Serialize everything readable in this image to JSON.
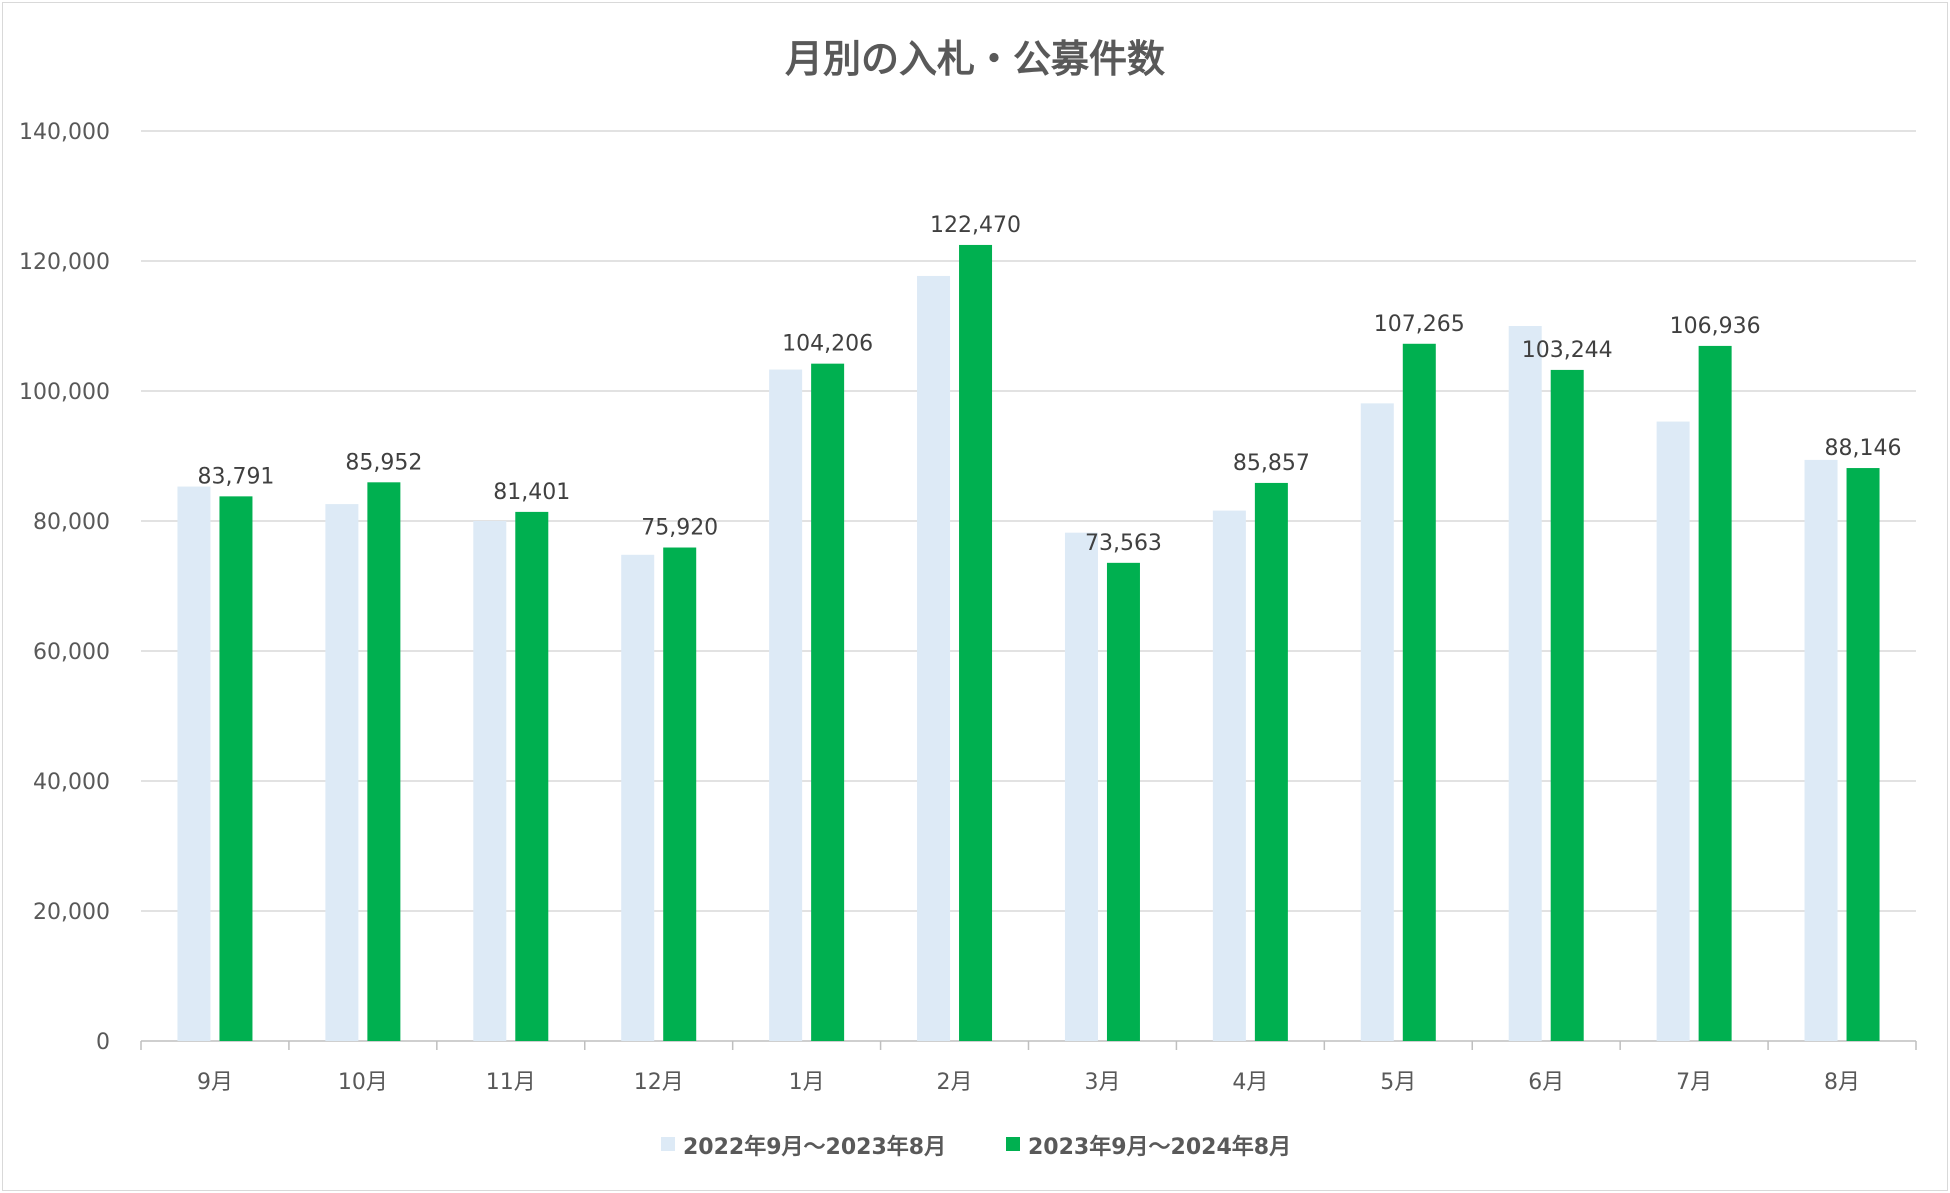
{
  "chart_data": {
    "type": "bar",
    "title": "月別の入札・公募件数",
    "xlabel": "",
    "ylabel": "",
    "ylim": [
      0,
      140000
    ],
    "yticks": [
      0,
      20000,
      40000,
      60000,
      80000,
      100000,
      120000,
      140000
    ],
    "ytick_labels": [
      "0",
      "20,000",
      "40,000",
      "60,000",
      "80,000",
      "100,000",
      "120,000",
      "140,000"
    ],
    "categories": [
      "9月",
      "10月",
      "11月",
      "12月",
      "1月",
      "2月",
      "3月",
      "4月",
      "5月",
      "6月",
      "7月",
      "8月"
    ],
    "grid": true,
    "legend_position": "bottom",
    "series": [
      {
        "name": "2022年9月～2023年8月",
        "color": "#ddeaf6",
        "values": [
          85300,
          82600,
          80000,
          74800,
          103300,
          117700,
          78200,
          81600,
          98100,
          110000,
          95300,
          89400
        ],
        "show_labels": false
      },
      {
        "name": "2023年9月～2024年8月",
        "color": "#00b050",
        "values": [
          83791,
          85952,
          81401,
          75920,
          104206,
          122470,
          73563,
          85857,
          107265,
          103244,
          106936,
          88146
        ],
        "labels": [
          "83,791",
          "85,952",
          "81,401",
          "75,920",
          "104,206",
          "122,470",
          "73,563",
          "85,857",
          "107,265",
          "103,244",
          "106,936",
          "88,146"
        ],
        "show_labels": true
      }
    ]
  }
}
